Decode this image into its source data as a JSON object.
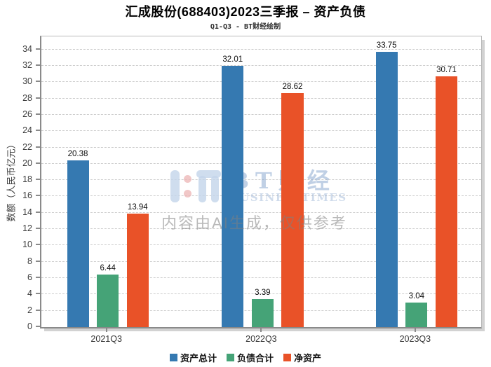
{
  "title": "汇成股份(688403)2023三季报 – 资产负债",
  "subtitle": "Q1-Q3 - BT财经绘制",
  "watermark": {
    "brand_cn": "BT财经",
    "brand_en": "BUSINESSTIMES",
    "ai_notice": "内容由AI生成，仅供参考"
  },
  "chart_data": {
    "type": "bar",
    "title": "汇成股份(688403)2023三季报 – 资产负债",
    "subtitle": "Q1-Q3 - BT财经绘制",
    "categories": [
      "2021Q3",
      "2022Q3",
      "2023Q3"
    ],
    "series": [
      {
        "name": "资产总计",
        "color": "#3579B1",
        "values": [
          20.38,
          32.01,
          33.75
        ]
      },
      {
        "name": "负债合计",
        "color": "#45A377",
        "values": [
          6.44,
          3.39,
          3.04
        ]
      },
      {
        "name": "净资产",
        "color": "#E95228",
        "values": [
          13.94,
          28.62,
          30.71
        ]
      }
    ],
    "xlabel": "",
    "ylabel": "数额（人民币亿元）",
    "ylim": [
      0,
      35.6
    ],
    "yticks": [
      0,
      2,
      4,
      6,
      8,
      10,
      12,
      14,
      16,
      18,
      20,
      22,
      24,
      26,
      28,
      30,
      32,
      34
    ],
    "grid": "horizontal-dashed",
    "legend_position": "bottom"
  }
}
